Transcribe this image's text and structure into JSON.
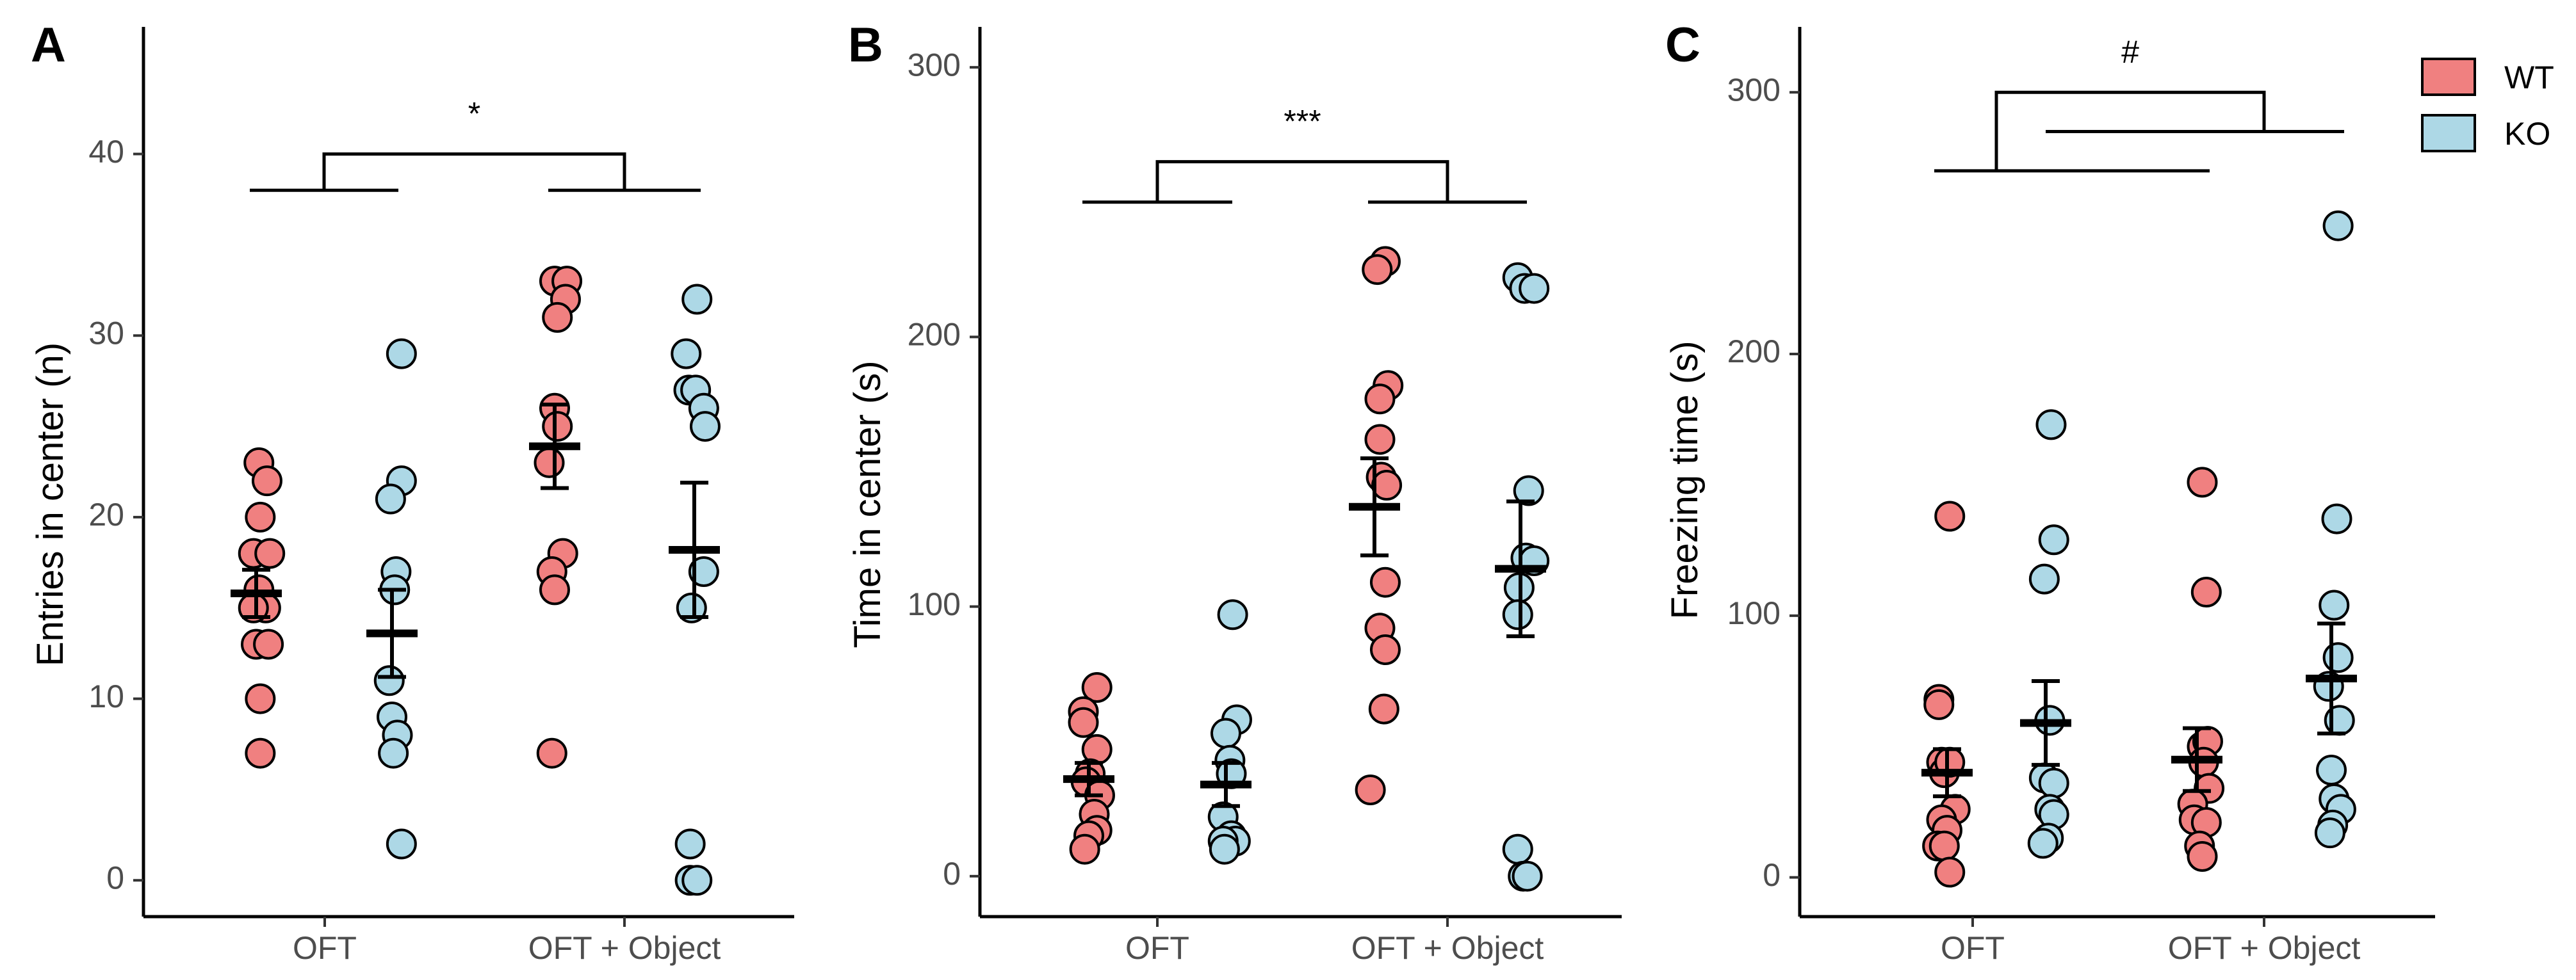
{
  "chart_data": [
    {
      "type": "scatter",
      "panel_label": "A",
      "ylabel": "Entries in center (n)",
      "xlabel": "",
      "categories": [
        "OFT",
        "OFT + Object"
      ],
      "ylim": [
        -2,
        47
      ],
      "yticks": [
        0,
        10,
        20,
        30,
        40
      ],
      "series": [
        {
          "name": "WT",
          "color": "#F08080",
          "summaries": [
            {
              "mean": 15.8,
              "sem": 1.3
            },
            {
              "mean": 23.9,
              "sem": 2.3
            }
          ]
        },
        {
          "name": "KO",
          "color": "#ADD8E6",
          "summaries": [
            {
              "mean": 13.6,
              "sem": 2.4
            },
            {
              "mean": 18.2,
              "sem": 3.7
            }
          ]
        }
      ],
      "points": [
        [
          {
            "dx": 0.02,
            "y": 23
          },
          {
            "dx": 0.08,
            "y": 22
          },
          {
            "dx": 0.03,
            "y": 20
          },
          {
            "dx": -0.02,
            "y": 18
          },
          {
            "dx": 0.1,
            "y": 18
          },
          {
            "dx": 0.02,
            "y": 16
          },
          {
            "dx": 0.07,
            "y": 15
          },
          {
            "dx": -0.02,
            "y": 15
          },
          {
            "dx": 0.0,
            "y": 13
          },
          {
            "dx": 0.09,
            "y": 13
          },
          {
            "dx": 0.03,
            "y": 10
          },
          {
            "dx": 0.03,
            "y": 7
          }
        ],
        [
          {
            "dx": 0.07,
            "y": 29
          },
          {
            "dx": 0.07,
            "y": 22
          },
          {
            "dx": -0.01,
            "y": 21
          },
          {
            "dx": 0.03,
            "y": 17
          },
          {
            "dx": 0.02,
            "y": 16
          },
          {
            "dx": -0.02,
            "y": 11
          },
          {
            "dx": 0.0,
            "y": 9
          },
          {
            "dx": 0.04,
            "y": 8
          },
          {
            "dx": 0.01,
            "y": 7
          },
          {
            "dx": 0.07,
            "y": 2
          }
        ],
        [
          {
            "dx": 0.0,
            "y": 33
          },
          {
            "dx": 0.09,
            "y": 33
          },
          {
            "dx": 0.08,
            "y": 32
          },
          {
            "dx": 0.02,
            "y": 31
          },
          {
            "dx": 0.0,
            "y": 26
          },
          {
            "dx": 0.02,
            "y": 25
          },
          {
            "dx": -0.04,
            "y": 23
          },
          {
            "dx": 0.06,
            "y": 18
          },
          {
            "dx": -0.02,
            "y": 17
          },
          {
            "dx": 0.0,
            "y": 16
          },
          {
            "dx": -0.02,
            "y": 7
          }
        ],
        [
          {
            "dx": 0.02,
            "y": 32
          },
          {
            "dx": -0.06,
            "y": 29
          },
          {
            "dx": -0.04,
            "y": 27
          },
          {
            "dx": 0.01,
            "y": 27
          },
          {
            "dx": 0.07,
            "y": 26
          },
          {
            "dx": 0.08,
            "y": 25
          },
          {
            "dx": -0.02,
            "y": 15
          },
          {
            "dx": 0.07,
            "y": 17
          },
          {
            "dx": -0.03,
            "y": 2
          },
          {
            "dx": -0.03,
            "y": 0
          },
          {
            "dx": 0.02,
            "y": 0
          }
        ]
      ],
      "significance": {
        "label": "*",
        "bracket_y": 40,
        "left_y": 38,
        "right_y": 38
      }
    },
    {
      "type": "scatter",
      "panel_label": "B",
      "ylabel": "Time in center (s)",
      "xlabel": "",
      "categories": [
        "OFT",
        "OFT + Object"
      ],
      "ylim": [
        -15,
        315
      ],
      "yticks": [
        0,
        100,
        200,
        300
      ],
      "series": [
        {
          "name": "WT",
          "color": "#F08080",
          "summaries": [
            {
              "mean": 36,
              "sem": 6
            },
            {
              "mean": 137,
              "sem": 18
            }
          ]
        },
        {
          "name": "KO",
          "color": "#ADD8E6",
          "summaries": [
            {
              "mean": 34,
              "sem": 8
            },
            {
              "mean": 114,
              "sem": 25
            }
          ]
        }
      ],
      "points": [
        [
          {
            "dx": 0.06,
            "y": 70
          },
          {
            "dx": -0.04,
            "y": 61
          },
          {
            "dx": -0.04,
            "y": 57
          },
          {
            "dx": 0.06,
            "y": 47
          },
          {
            "dx": 0.01,
            "y": 38
          },
          {
            "dx": -0.02,
            "y": 35
          },
          {
            "dx": 0.08,
            "y": 30
          },
          {
            "dx": 0.04,
            "y": 23
          },
          {
            "dx": 0.06,
            "y": 17
          },
          {
            "dx": 0.0,
            "y": 15
          },
          {
            "dx": -0.03,
            "y": 10
          }
        ],
        [
          {
            "dx": 0.05,
            "y": 97
          },
          {
            "dx": 0.08,
            "y": 58
          },
          {
            "dx": 0.0,
            "y": 53
          },
          {
            "dx": 0.03,
            "y": 43
          },
          {
            "dx": 0.04,
            "y": 38
          },
          {
            "dx": -0.02,
            "y": 22
          },
          {
            "dx": 0.04,
            "y": 15
          },
          {
            "dx": 0.07,
            "y": 13
          },
          {
            "dx": -0.02,
            "y": 13
          },
          {
            "dx": -0.01,
            "y": 10
          }
        ],
        [
          {
            "dx": 0.08,
            "y": 228
          },
          {
            "dx": 0.02,
            "y": 225
          },
          {
            "dx": 0.1,
            "y": 182
          },
          {
            "dx": 0.04,
            "y": 177
          },
          {
            "dx": 0.04,
            "y": 162
          },
          {
            "dx": 0.05,
            "y": 148
          },
          {
            "dx": 0.09,
            "y": 145
          },
          {
            "dx": 0.08,
            "y": 109
          },
          {
            "dx": 0.04,
            "y": 92
          },
          {
            "dx": 0.08,
            "y": 84
          },
          {
            "dx": 0.07,
            "y": 62
          },
          {
            "dx": -0.03,
            "y": 32
          }
        ],
        [
          {
            "dx": -0.02,
            "y": 222
          },
          {
            "dx": 0.03,
            "y": 218
          },
          {
            "dx": 0.1,
            "y": 218
          },
          {
            "dx": 0.06,
            "y": 143
          },
          {
            "dx": 0.04,
            "y": 118
          },
          {
            "dx": 0.1,
            "y": 117
          },
          {
            "dx": -0.01,
            "y": 107
          },
          {
            "dx": -0.02,
            "y": 97
          },
          {
            "dx": -0.02,
            "y": 10
          },
          {
            "dx": 0.02,
            "y": 0
          },
          {
            "dx": 0.05,
            "y": 0
          }
        ]
      ],
      "significance": {
        "label": "***",
        "bracket_y": 265,
        "left_y": 250,
        "right_y": 250
      }
    },
    {
      "type": "scatter",
      "panel_label": "C",
      "ylabel": "Freezing time (s)",
      "xlabel": "",
      "categories": [
        "OFT",
        "OFT + Object"
      ],
      "ylim": [
        -15,
        325
      ],
      "yticks": [
        0,
        100,
        200,
        300
      ],
      "series": [
        {
          "name": "WT",
          "color": "#F08080",
          "summaries": [
            {
              "mean": 40,
              "sem": 9
            },
            {
              "mean": 45,
              "sem": 12
            }
          ]
        },
        {
          "name": "KO",
          "color": "#ADD8E6",
          "summaries": [
            {
              "mean": 59,
              "sem": 16
            },
            {
              "mean": 76,
              "sem": 21
            }
          ]
        }
      ],
      "points": [
        [
          {
            "dx": 0.02,
            "y": 138
          },
          {
            "dx": -0.06,
            "y": 68
          },
          {
            "dx": -0.06,
            "y": 66
          },
          {
            "dx": -0.04,
            "y": 44
          },
          {
            "dx": -0.02,
            "y": 40
          },
          {
            "dx": 0.02,
            "y": 44
          },
          {
            "dx": 0.06,
            "y": 26
          },
          {
            "dx": -0.04,
            "y": 22
          },
          {
            "dx": 0.0,
            "y": 18
          },
          {
            "dx": -0.07,
            "y": 12
          },
          {
            "dx": -0.02,
            "y": 12
          },
          {
            "dx": 0.02,
            "y": 2
          }
        ],
        [
          {
            "dx": 0.04,
            "y": 173
          },
          {
            "dx": 0.06,
            "y": 129
          },
          {
            "dx": -0.01,
            "y": 114
          },
          {
            "dx": 0.03,
            "y": 60
          },
          {
            "dx": -0.01,
            "y": 38
          },
          {
            "dx": 0.06,
            "y": 36
          },
          {
            "dx": 0.03,
            "y": 26
          },
          {
            "dx": 0.06,
            "y": 24
          },
          {
            "dx": 0.02,
            "y": 15
          },
          {
            "dx": -0.02,
            "y": 13
          }
        ],
        [
          {
            "dx": 0.04,
            "y": 151
          },
          {
            "dx": 0.07,
            "y": 109
          },
          {
            "dx": 0.04,
            "y": 50
          },
          {
            "dx": 0.08,
            "y": 52
          },
          {
            "dx": 0.05,
            "y": 44
          },
          {
            "dx": 0.09,
            "y": 34
          },
          {
            "dx": -0.03,
            "y": 28
          },
          {
            "dx": -0.02,
            "y": 22
          },
          {
            "dx": 0.07,
            "y": 21
          },
          {
            "dx": 0.02,
            "y": 12
          },
          {
            "dx": 0.04,
            "y": 8
          }
        ],
        [
          {
            "dx": 0.05,
            "y": 249
          },
          {
            "dx": 0.04,
            "y": 137
          },
          {
            "dx": 0.02,
            "y": 104
          },
          {
            "dx": 0.05,
            "y": 84
          },
          {
            "dx": -0.02,
            "y": 73
          },
          {
            "dx": 0.06,
            "y": 60
          },
          {
            "dx": 0.0,
            "y": 41
          },
          {
            "dx": 0.02,
            "y": 30
          },
          {
            "dx": 0.07,
            "y": 26
          },
          {
            "dx": 0.01,
            "y": 20
          },
          {
            "dx": -0.01,
            "y": 17
          }
        ]
      ],
      "significance": {
        "label": "#",
        "bracket_y": 300,
        "left_y": 270,
        "right_y": 285,
        "split_style": "interaction"
      }
    }
  ],
  "legend": {
    "placement": "top-right",
    "items": [
      {
        "label": "WT",
        "color": "#F08080"
      },
      {
        "label": "KO",
        "color": "#ADD8E6"
      }
    ]
  }
}
